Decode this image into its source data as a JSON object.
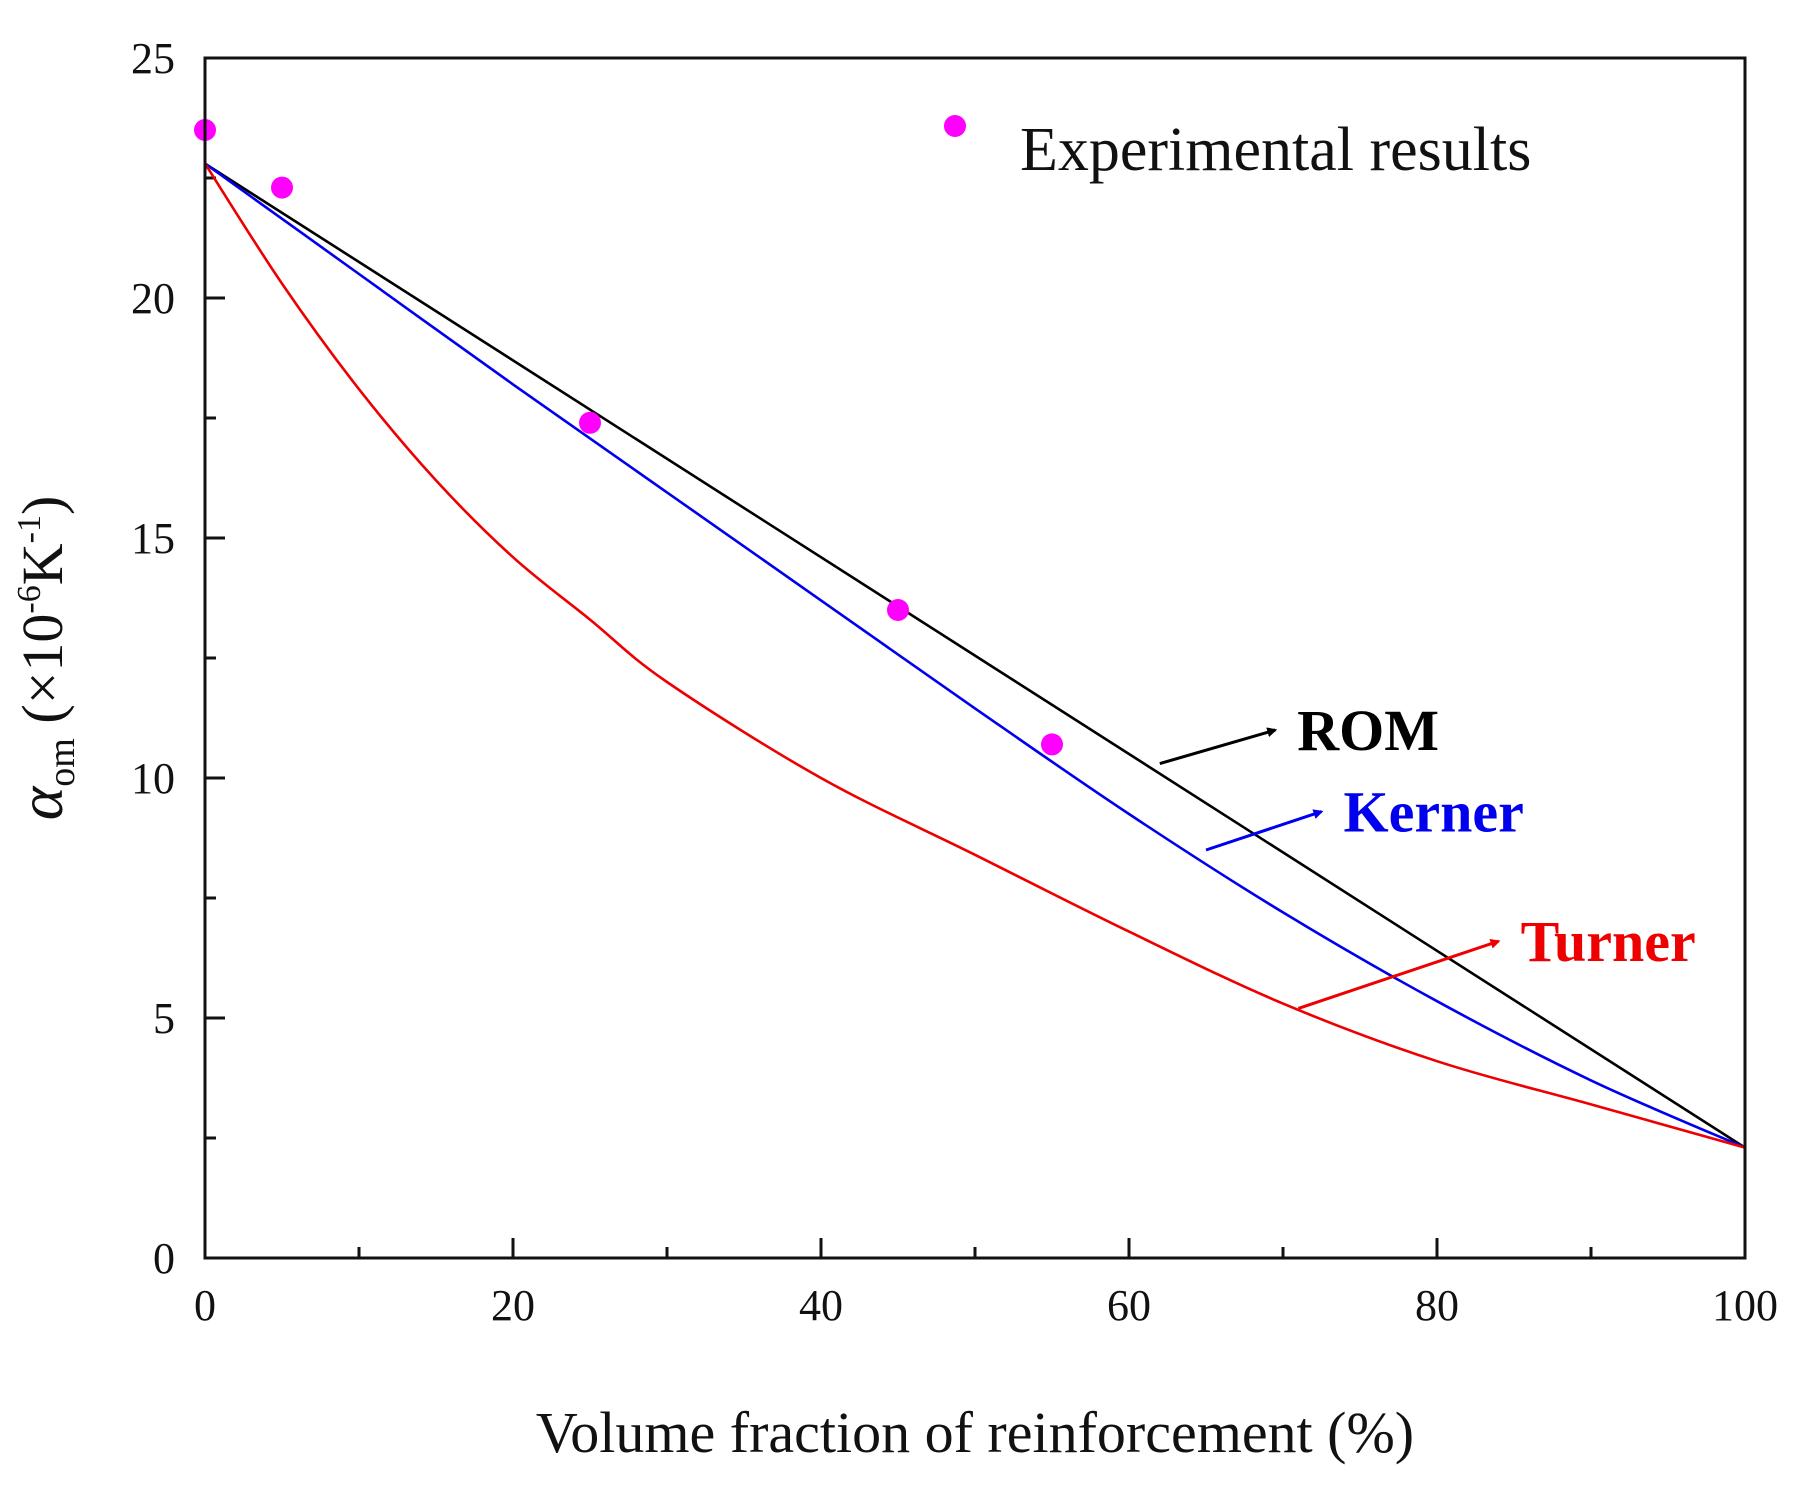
{
  "chart_data": {
    "type": "line",
    "xlabel": "Volume fraction of reinforcement (%)",
    "ylabel": {
      "symbol": "α",
      "subscript": "om",
      "unit_prefix": " (×10",
      "unit_exp": "-6",
      "unit_mid": "K",
      "unit_exp2": "-1",
      "unit_suffix": ")"
    },
    "xlim": [
      0,
      100
    ],
    "ylim": [
      0,
      25
    ],
    "x_ticks": [
      0,
      20,
      40,
      60,
      80,
      100
    ],
    "y_ticks": [
      0,
      5,
      10,
      15,
      20,
      25
    ],
    "x_minor_ticks": [
      10,
      30,
      50,
      70,
      90
    ],
    "y_minor_ticks": [
      2.5,
      7.5,
      12.5,
      17.5,
      22.5
    ],
    "legend": {
      "position": "top-right",
      "entries": [
        {
          "label": "Experimental results",
          "color": "#ff00ff",
          "marker": "circle"
        }
      ]
    },
    "series": [
      {
        "name": "ROM",
        "color": "#000000",
        "kind": "line",
        "x": [
          0,
          100
        ],
        "y": [
          22.8,
          2.3
        ]
      },
      {
        "name": "Kerner",
        "color": "#0000ee",
        "kind": "line",
        "x": [
          0,
          10,
          20,
          30,
          40,
          50,
          60,
          70,
          80,
          90,
          100
        ],
        "y": [
          22.8,
          20.5,
          18.2,
          15.95,
          13.7,
          11.45,
          9.25,
          7.2,
          5.35,
          3.7,
          2.3
        ]
      },
      {
        "name": "Turner",
        "color": "#ee0000",
        "kind": "line",
        "x": [
          0,
          5,
          10,
          15,
          20,
          25,
          30,
          40,
          50,
          60,
          70,
          80,
          90,
          100
        ],
        "y": [
          22.8,
          20.3,
          18.1,
          16.2,
          14.6,
          13.3,
          12.0,
          10.0,
          8.4,
          6.8,
          5.3,
          4.1,
          3.2,
          2.3
        ]
      },
      {
        "name": "Experimental results",
        "color": "#ff00ff",
        "kind": "scatter",
        "x": [
          0,
          5,
          25,
          45,
          55
        ],
        "y": [
          23.5,
          22.3,
          17.4,
          13.5,
          10.7
        ]
      }
    ],
    "annotations": [
      {
        "label": "ROM",
        "color": "#000000",
        "from": [
          62,
          10.3
        ],
        "to": [
          69.5,
          11.0
        ]
      },
      {
        "label": "Kerner",
        "color": "#0000ee",
        "from": [
          65,
          8.5
        ],
        "to": [
          72.5,
          9.3
        ]
      },
      {
        "label": "Turner",
        "color": "#ee0000",
        "from": [
          71,
          5.2
        ],
        "to": [
          84,
          6.6
        ]
      }
    ]
  }
}
